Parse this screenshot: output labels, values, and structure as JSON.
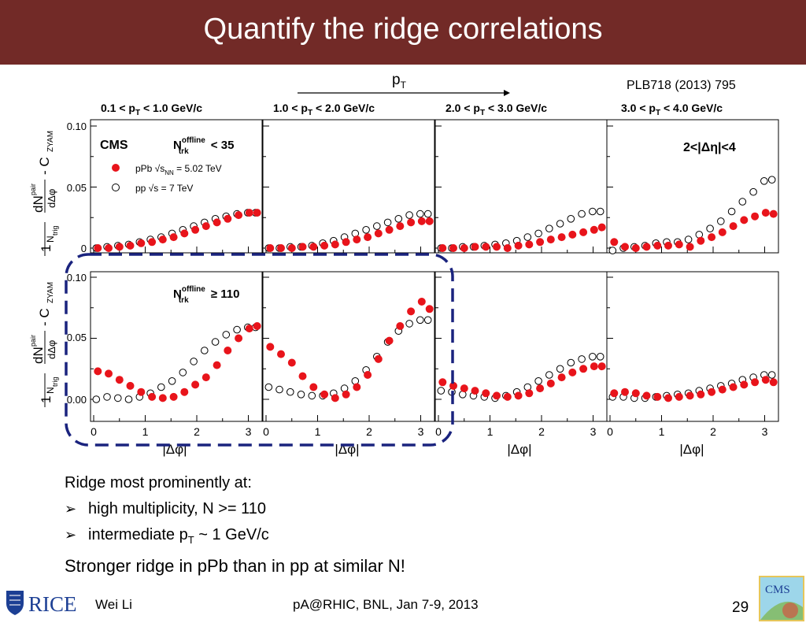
{
  "slide": {
    "title": "Quantify the ridge correlations",
    "pt_arrow_label": "p",
    "pt_arrow_sub": "T",
    "reference": "PLB718 (2013) 795",
    "bullet_heading": "Ridge most prominently at:",
    "bullet_1": "high multiplicity, N >= 110",
    "bullet_2_pre": "intermediate p",
    "bullet_2_sub": "T",
    "bullet_2_post": " ~ 1 GeV/c",
    "conclusion": "Stronger ridge in pPb than in pp at similar N!",
    "footer_author": "Wei Li",
    "footer_event": "pA@RHIC, BNL, Jan 7-9, 2013",
    "page_number": "29",
    "logo_left": "RICE",
    "logo_right": "CMS"
  },
  "colors": {
    "title_bar": "#722a27",
    "ppb_marker": "#e8141b",
    "highlight_box": "#1a237e"
  },
  "chart_data": {
    "type": "scatter",
    "columns": [
      "0.1 < pT < 1.0 GeV/c",
      "1.0 < pT < 2.0 GeV/c",
      "2.0 < pT < 3.0 GeV/c",
      "3.0 < pT < 4.0 GeV/c"
    ],
    "rows": [
      "N_trk^offline < 35",
      "N_trk^offline ≥ 110"
    ],
    "xlabel": "|Δφ|",
    "ylabel": "1/N_trig dN^pair/dΔφ - C_ZYAM",
    "xlim": [
      0,
      3.2
    ],
    "ylim": [
      -0.003,
      0.1
    ],
    "xticks": [
      0,
      1,
      2,
      3
    ],
    "yticks_row1": [
      "0",
      "0.05",
      "0.10"
    ],
    "yticks_row2": [
      "0.00",
      "0.05",
      "0.10"
    ],
    "experiment": "CMS",
    "cut_label": "2<|Δη|<4",
    "legend": [
      "pPb √sNN = 5.02 TeV",
      "pp √s = 7 TeV"
    ],
    "x": [
      0.05,
      0.26,
      0.47,
      0.68,
      0.89,
      1.1,
      1.31,
      1.52,
      1.73,
      1.94,
      2.15,
      2.36,
      2.57,
      2.78,
      2.99,
      3.14
    ],
    "panels": [
      {
        "row": 0,
        "col": 0,
        "ppb": [
          0.0,
          0.0,
          0.001,
          0.002,
          0.004,
          0.005,
          0.007,
          0.009,
          0.012,
          0.015,
          0.018,
          0.021,
          0.024,
          0.027,
          0.029,
          0.029
        ],
        "pp": [
          0.0,
          0.001,
          0.002,
          0.003,
          0.005,
          0.007,
          0.009,
          0.012,
          0.015,
          0.018,
          0.021,
          0.024,
          0.026,
          0.028,
          0.029,
          0.029
        ]
      },
      {
        "row": 0,
        "col": 1,
        "ppb": [
          0.0,
          0.0,
          0.0,
          0.001,
          0.001,
          0.002,
          0.003,
          0.005,
          0.007,
          0.009,
          0.012,
          0.015,
          0.018,
          0.021,
          0.022,
          0.022
        ],
        "pp": [
          0.0,
          0.0,
          0.001,
          0.001,
          0.002,
          0.004,
          0.006,
          0.009,
          0.012,
          0.015,
          0.018,
          0.021,
          0.024,
          0.027,
          0.028,
          0.028
        ]
      },
      {
        "row": 0,
        "col": 2,
        "ppb": [
          0.0,
          0.0,
          0.0,
          0.001,
          0.001,
          0.001,
          0.0,
          0.002,
          0.003,
          0.005,
          0.007,
          0.009,
          0.011,
          0.013,
          0.015,
          0.017
        ],
        "pp": [
          0.0,
          0.0,
          0.001,
          0.001,
          0.002,
          0.003,
          0.004,
          0.006,
          0.009,
          0.012,
          0.016,
          0.02,
          0.024,
          0.028,
          0.03,
          0.03
        ]
      },
      {
        "row": 0,
        "col": 3,
        "ppb": [
          0.005,
          0.001,
          0.0,
          0.001,
          0.002,
          0.002,
          0.003,
          0.001,
          0.006,
          0.009,
          0.013,
          0.018,
          0.023,
          0.026,
          0.029,
          0.028
        ],
        "pp": [
          -0.002,
          0.0,
          0.001,
          0.002,
          0.004,
          0.005,
          0.005,
          0.007,
          0.011,
          0.016,
          0.022,
          0.03,
          0.038,
          0.046,
          0.055,
          0.056
        ]
      },
      {
        "row": 1,
        "col": 0,
        "ppb": [
          0.023,
          0.021,
          0.016,
          0.011,
          0.006,
          0.002,
          0.001,
          0.002,
          0.006,
          0.012,
          0.018,
          0.028,
          0.04,
          0.05,
          0.058,
          0.06
        ],
        "pp": [
          0.0,
          0.002,
          0.001,
          0.0,
          0.002,
          0.005,
          0.01,
          0.015,
          0.022,
          0.031,
          0.04,
          0.047,
          0.053,
          0.057,
          0.059,
          0.059
        ]
      },
      {
        "row": 1,
        "col": 1,
        "ppb": [
          0.043,
          0.037,
          0.03,
          0.019,
          0.01,
          0.004,
          0.001,
          0.004,
          0.01,
          0.02,
          0.033,
          0.048,
          0.06,
          0.072,
          0.08,
          0.074
        ],
        "pp": [
          0.01,
          0.008,
          0.006,
          0.004,
          0.003,
          0.003,
          0.005,
          0.009,
          0.015,
          0.024,
          0.035,
          0.047,
          0.056,
          0.062,
          0.065,
          0.065
        ]
      },
      {
        "row": 1,
        "col": 2,
        "ppb": [
          0.014,
          0.011,
          0.009,
          0.007,
          0.005,
          0.003,
          0.002,
          0.003,
          0.005,
          0.009,
          0.013,
          0.018,
          0.022,
          0.025,
          0.027,
          0.027
        ],
        "pp": [
          0.007,
          0.006,
          0.004,
          0.003,
          0.002,
          0.001,
          0.003,
          0.006,
          0.01,
          0.015,
          0.02,
          0.025,
          0.03,
          0.033,
          0.035,
          0.035
        ]
      },
      {
        "row": 1,
        "col": 3,
        "ppb": [
          0.005,
          0.006,
          0.005,
          0.003,
          0.002,
          0.001,
          0.002,
          0.003,
          0.004,
          0.006,
          0.008,
          0.01,
          0.012,
          0.014,
          0.016,
          0.014
        ],
        "pp": [
          0.002,
          0.002,
          0.001,
          0.001,
          0.002,
          0.003,
          0.004,
          0.005,
          0.007,
          0.009,
          0.011,
          0.013,
          0.016,
          0.018,
          0.02,
          0.02
        ]
      }
    ]
  }
}
